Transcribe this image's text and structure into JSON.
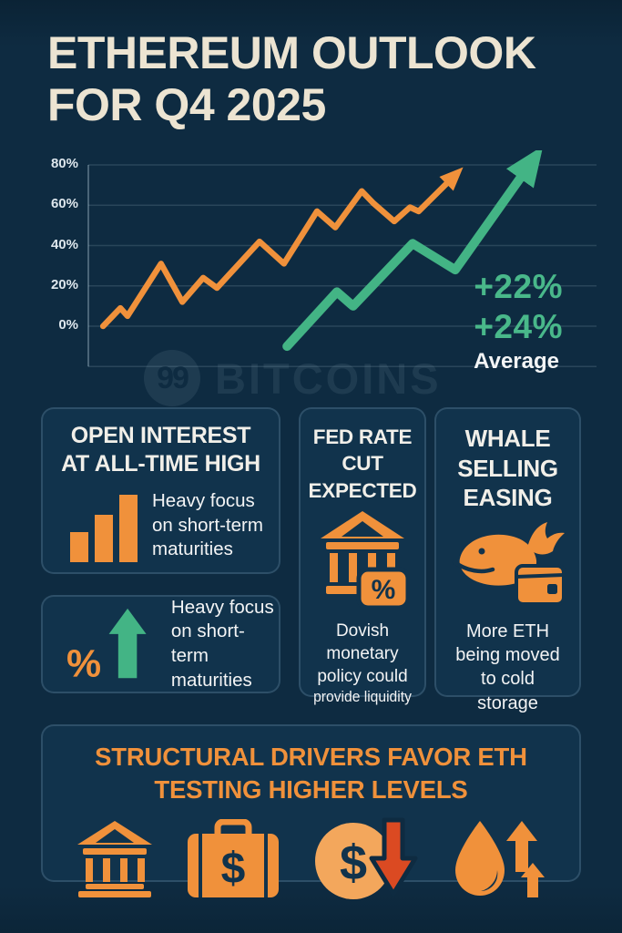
{
  "title": {
    "line1": "ETHEREUM OUTLOOK",
    "line2": "FOR Q4 2025"
  },
  "watermark": {
    "logo": "99",
    "brand": "BITCOINS"
  },
  "chart_data": {
    "type": "line",
    "yticks": [
      {
        "label": "80%",
        "value": 80
      },
      {
        "label": "60%",
        "value": 60
      },
      {
        "label": "40%",
        "value": 40
      },
      {
        "label": "20%",
        "value": 20
      },
      {
        "label": "0%",
        "value": 0
      }
    ],
    "ylim": [
      -20,
      80
    ],
    "grid": true,
    "legend_position": "none",
    "series": [
      {
        "name": "eth-historical-trend",
        "color": "#F0913B",
        "stroke_width": 6.5,
        "arrow_w": 26,
        "arrow_h": 22,
        "x": [
          2.9,
          6.3,
          7.7,
          14.3,
          18.5,
          22.6,
          25.3,
          33.7,
          38.5,
          45.0,
          48.6,
          53.8,
          56.1,
          60.2,
          63.3,
          65.0,
          71.0
        ],
        "y": [
          0,
          9,
          5,
          31,
          12,
          24,
          19,
          42,
          31,
          57,
          49,
          67,
          61,
          52,
          59,
          57,
          72
        ]
      },
      {
        "name": "eth-projection-trend",
        "color": "#43B485",
        "stroke_width": 10,
        "arrow_w": 44,
        "arrow_h": 38,
        "x": [
          39.1,
          48.9,
          52.1,
          63.8,
          72.2,
          85.7
        ],
        "y": [
          -10,
          17,
          10,
          41,
          28,
          76
        ]
      }
    ],
    "annotations": {
      "value_top": "+22%",
      "value_bottom": "+24%",
      "caption": "Average",
      "value_color": "#49B88A",
      "caption_color": "#F3F5F6"
    }
  },
  "cards": {
    "open_interest": {
      "title": "OPEN INTEREST\nAT ALL-TIME HIGH",
      "body": "Heavy focus\non short-term\nmaturities",
      "icon": "bar-chart-icon"
    },
    "maturities": {
      "body": "Heavy focus\non short-term\nmaturities",
      "icon": "percent-up-arrow-icon"
    },
    "fed_rate": {
      "title": "FED RATE\nCUT\nEXPECTED",
      "body": "Dovish\nmonetary\npolicy could",
      "body_condensed": "provide liquidity",
      "icon": "bank-percent-icon"
    },
    "whale": {
      "title": "WHALE\nSELLING\nEASING",
      "body": "More ETH\nbeing moved\nto cold\nstorage",
      "icon": "whale-wallet-icon"
    }
  },
  "banner": {
    "title": "STRUCTURAL DRIVERS FAVOR ETH\nTESTING HIGHER LEVELS",
    "icons": [
      "bank-icon",
      "briefcase-dollar-icon",
      "dollar-coin-down-arrow-icon",
      "liquidity-drop-up-arrows-icon"
    ]
  },
  "colors": {
    "background": "#0E2B41",
    "card_background": "#11334C",
    "card_border": "#3A5A73",
    "orange": "#F0913B",
    "light_orange": "#F3A75C",
    "green": "#43B485",
    "red_arrow": "#DB4A22",
    "cream_title": "#ECE4D2",
    "white_text": "#F2F4F5",
    "grid": "rgba(186,209,224,0.16)"
  }
}
